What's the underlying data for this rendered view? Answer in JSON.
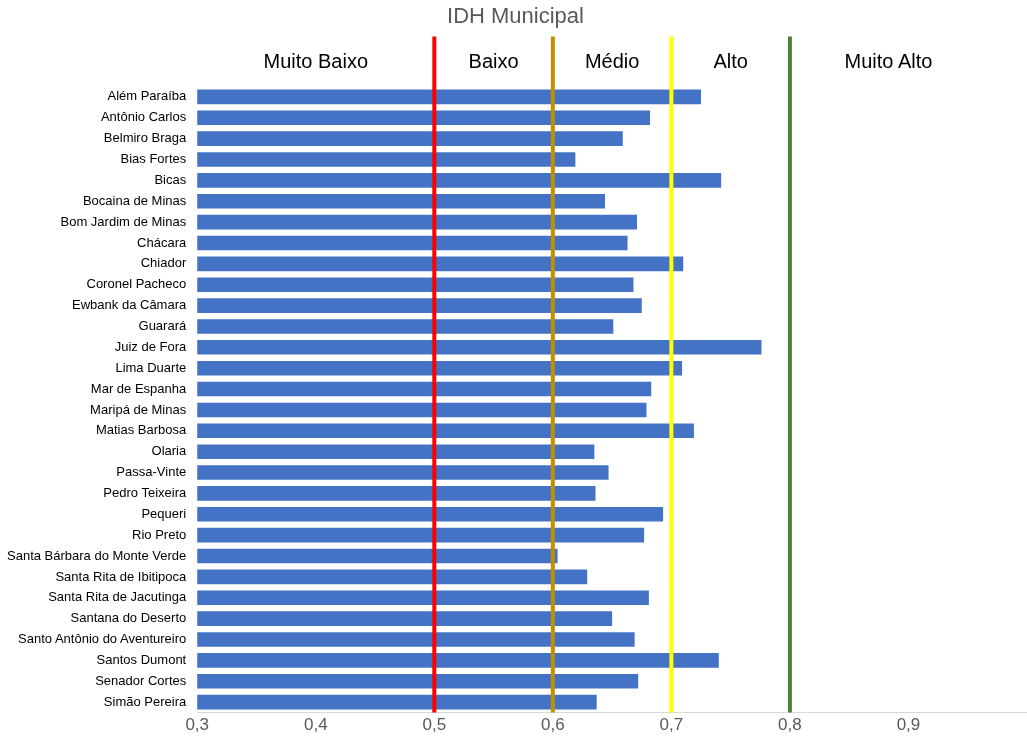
{
  "chart_data": {
    "type": "bar",
    "orientation": "horizontal",
    "title": "IDH Municipal",
    "categories": [
      "Além Paraíba",
      "Antônio Carlos",
      "Belmiro Braga",
      "Bias Fortes",
      "Bicas",
      "Bocaina de Minas",
      "Bom Jardim de Minas",
      "Chácara",
      "Chiador",
      "Coronel Pacheco",
      "Ewbank da Câmara",
      "Guarará",
      "Juiz de Fora",
      "Lima Duarte",
      "Mar de Espanha",
      "Maripá de Minas",
      "Matias Barbosa",
      "Olaria",
      "Passa-Vinte",
      "Pedro Teixeira",
      "Pequeri",
      "Rio Preto",
      "Santa Bárbara do Monte Verde",
      "Santa Rita de Ibitipoca",
      "Santa Rita de Jacutinga",
      "Santana do Deserto",
      "Santo Antônio do Aventureiro",
      "Santos Dumont",
      "Senador Cortes",
      "Simão Pereira"
    ],
    "values": [
      0.725,
      0.682,
      0.659,
      0.619,
      0.742,
      0.644,
      0.671,
      0.663,
      0.71,
      0.668,
      0.675,
      0.651,
      0.776,
      0.709,
      0.683,
      0.679,
      0.719,
      0.635,
      0.647,
      0.636,
      0.693,
      0.677,
      0.604,
      0.629,
      0.681,
      0.65,
      0.669,
      0.74,
      0.672,
      0.637
    ],
    "color": "#4472c4",
    "xlim": [
      0.3,
      1.0
    ],
    "xticks": [
      {
        "value": 0.3,
        "label": "0,3"
      },
      {
        "value": 0.4,
        "label": "0,4"
      },
      {
        "value": 0.5,
        "label": "0,5"
      },
      {
        "value": 0.6,
        "label": "0,6"
      },
      {
        "value": 0.7,
        "label": "0,7"
      },
      {
        "value": 0.8,
        "label": "0,8"
      },
      {
        "value": 0.9,
        "label": "0,9"
      }
    ],
    "ref_lines": [
      {
        "axis": "x",
        "value": 0.5,
        "color": "#ff0000"
      },
      {
        "axis": "x",
        "value": 0.6,
        "color": "#bf9000"
      },
      {
        "axis": "x",
        "value": 0.7,
        "color": "#ffff00"
      },
      {
        "axis": "x",
        "value": 0.8,
        "color": "#548235"
      }
    ],
    "annotations": [
      "Muito Baixo",
      "Baixo",
      "Médio",
      "Alto",
      "Muito Alto"
    ],
    "grid": false,
    "legend": false
  }
}
